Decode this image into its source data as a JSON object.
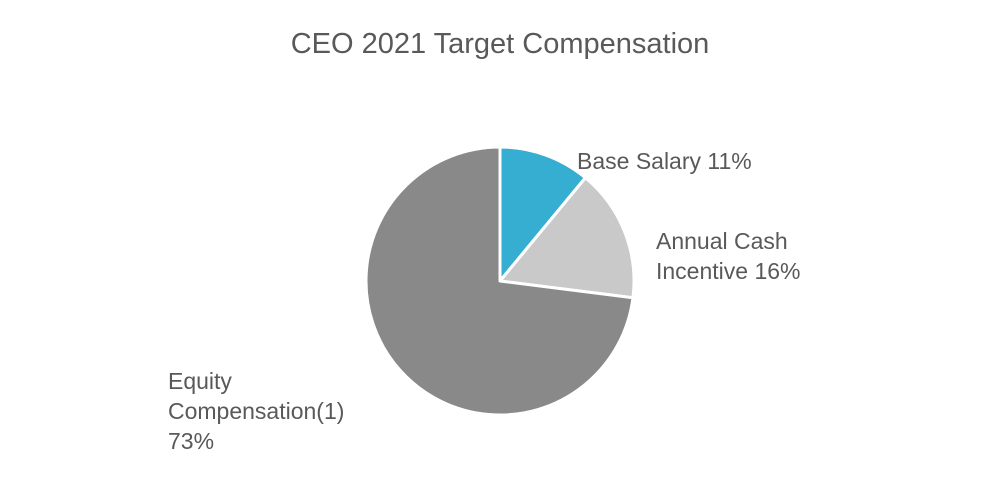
{
  "chart_data": {
    "type": "pie",
    "title": "CEO 2021 Target Compensation",
    "categories": [
      "Base Salary",
      "Annual Cash Incentive",
      "Equity Compensation(1)"
    ],
    "values": [
      11,
      16,
      73
    ],
    "unit": "%",
    "colors": [
      "#36AED1",
      "#C9C9C9",
      "#898989"
    ],
    "start_angle_deg": 0,
    "direction": "clockwise",
    "labels": [
      {
        "lines": [
          "Base Salary 11%"
        ]
      },
      {
        "lines": [
          "Annual Cash",
          "Incentive 16%"
        ]
      },
      {
        "lines": [
          "Equity",
          "Compensation(1)",
          "73%"
        ]
      }
    ],
    "legend": "none (data labels outside slices)"
  },
  "labels": {
    "base_salary": "Base Salary 11%",
    "annual_cash_1": "Annual Cash",
    "annual_cash_2": "Incentive 16%",
    "equity_1": "Equity",
    "equity_2": "Compensation(1)",
    "equity_3": "73%"
  }
}
